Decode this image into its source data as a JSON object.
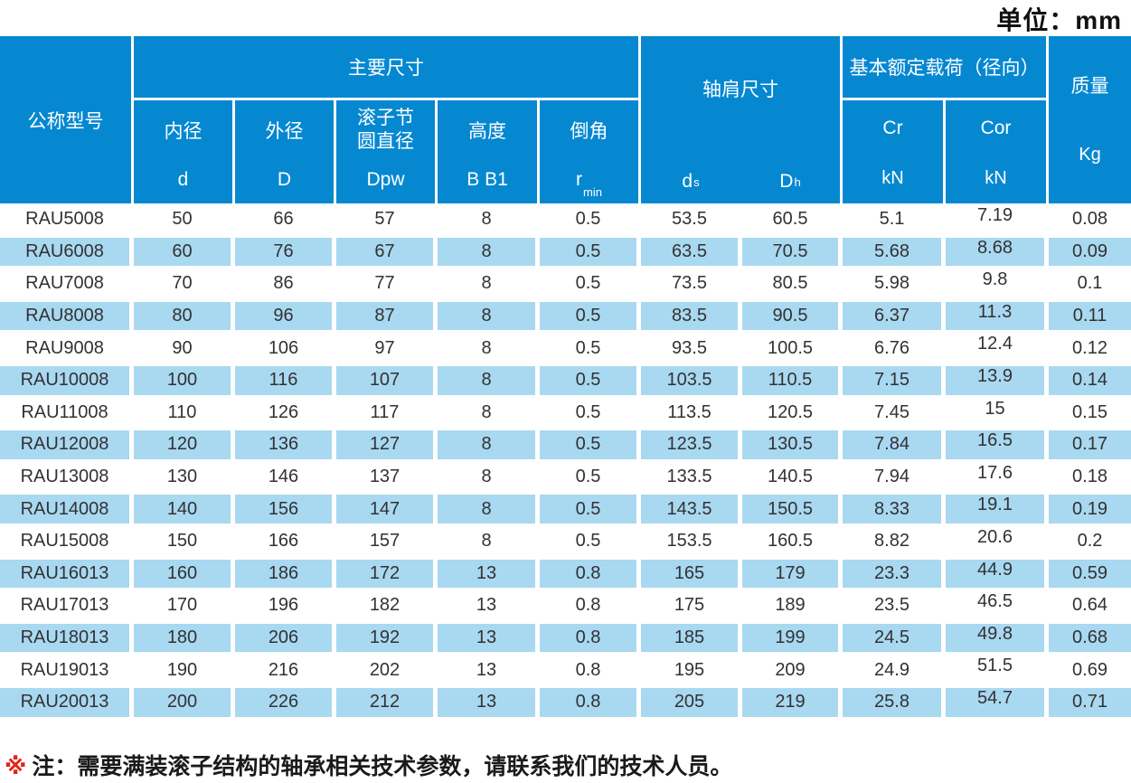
{
  "unit_label": "单位：mm",
  "table": {
    "header": {
      "model": "公称型号",
      "main_dims": "主要尺寸",
      "sub": {
        "inner": {
          "label": "内径",
          "sym": "d"
        },
        "outer": {
          "label": "外径",
          "sym": "D"
        },
        "pitch": {
          "label_lines": [
            "滚子节",
            "圆直径"
          ],
          "sym": "Dpw"
        },
        "height": {
          "label": "高度",
          "sym": "B B1"
        },
        "chamfer": {
          "label": "倒角",
          "sym_main": "r",
          "sym_sub": "min"
        }
      },
      "shoulder": {
        "label": "轴肩尺寸",
        "ds_main": "d",
        "ds_sub": "s",
        "dh_main": "D",
        "dh_sub": "h"
      },
      "load": {
        "label": "基本额定载荷（径向）",
        "cr_label": "Cr",
        "cor_label": "Cor",
        "cr_unit": "kN",
        "cor_unit": "kN"
      },
      "mass": {
        "label": "质量",
        "unit": "Kg"
      }
    },
    "rows": [
      [
        "RAU5008",
        "50",
        "66",
        "57",
        "8",
        "0.5",
        "53.5",
        "60.5",
        "5.1",
        "7.19",
        "0.08"
      ],
      [
        "RAU6008",
        "60",
        "76",
        "67",
        "8",
        "0.5",
        "63.5",
        "70.5",
        "5.68",
        "8.68",
        "0.09"
      ],
      [
        "RAU7008",
        "70",
        "86",
        "77",
        "8",
        "0.5",
        "73.5",
        "80.5",
        "5.98",
        "9.8",
        "0.1"
      ],
      [
        "RAU8008",
        "80",
        "96",
        "87",
        "8",
        "0.5",
        "83.5",
        "90.5",
        "6.37",
        "11.3",
        "0.11"
      ],
      [
        "RAU9008",
        "90",
        "106",
        "97",
        "8",
        "0.5",
        "93.5",
        "100.5",
        "6.76",
        "12.4",
        "0.12"
      ],
      [
        "RAU10008",
        "100",
        "116",
        "107",
        "8",
        "0.5",
        "103.5",
        "110.5",
        "7.15",
        "13.9",
        "0.14"
      ],
      [
        "RAU11008",
        "110",
        "126",
        "117",
        "8",
        "0.5",
        "113.5",
        "120.5",
        "7.45",
        "15",
        "0.15"
      ],
      [
        "RAU12008",
        "120",
        "136",
        "127",
        "8",
        "0.5",
        "123.5",
        "130.5",
        "7.84",
        "16.5",
        "0.17"
      ],
      [
        "RAU13008",
        "130",
        "146",
        "137",
        "8",
        "0.5",
        "133.5",
        "140.5",
        "7.94",
        "17.6",
        "0.18"
      ],
      [
        "RAU14008",
        "140",
        "156",
        "147",
        "8",
        "0.5",
        "143.5",
        "150.5",
        "8.33",
        "19.1",
        "0.19"
      ],
      [
        "RAU15008",
        "150",
        "166",
        "157",
        "8",
        "0.5",
        "153.5",
        "160.5",
        "8.82",
        "20.6",
        "0.2"
      ],
      [
        "RAU16013",
        "160",
        "186",
        "172",
        "13",
        "0.8",
        "165",
        "179",
        "23.3",
        "44.9",
        "0.59"
      ],
      [
        "RAU17013",
        "170",
        "196",
        "182",
        "13",
        "0.8",
        "175",
        "189",
        "23.5",
        "46.5",
        "0.64"
      ],
      [
        "RAU18013",
        "180",
        "206",
        "192",
        "13",
        "0.8",
        "185",
        "199",
        "24.5",
        "49.8",
        "0.68"
      ],
      [
        "RAU19013",
        "190",
        "216",
        "202",
        "13",
        "0.8",
        "195",
        "209",
        "24.9",
        "51.5",
        "0.69"
      ],
      [
        "RAU20013",
        "200",
        "226",
        "212",
        "13",
        "0.8",
        "205",
        "219",
        "25.8",
        "54.7",
        "0.71"
      ]
    ]
  },
  "note": {
    "marker": "※",
    "text": "注：需要满装滚子结构的轴承相关技术参数，请联系我们的技术人员。"
  },
  "colors": {
    "header_blue": "#0688d1",
    "stripe_blue": "#a9d8f1",
    "note_marker_red": "#e1251b"
  }
}
